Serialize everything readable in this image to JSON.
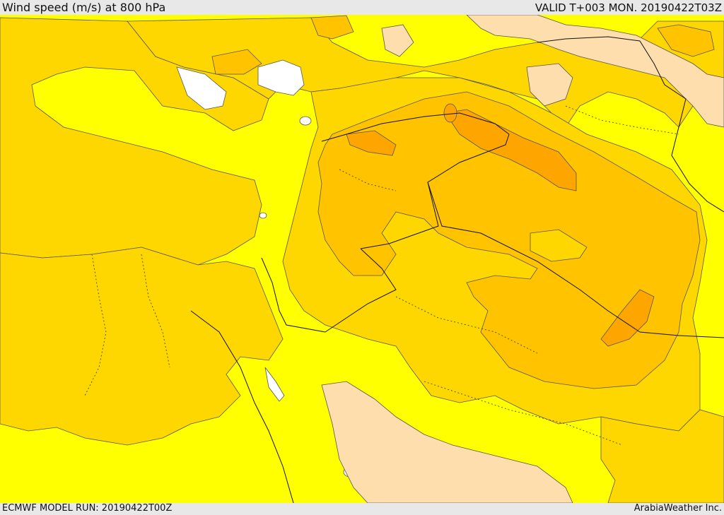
{
  "header": {
    "title": "Wind speed (m/s) at 800 hPa",
    "valid": "VALID T+003 MON. 20190422T03Z"
  },
  "footer": {
    "model_run": "ECMWF MODEL RUN: 20190422T00Z",
    "credit": "ArabiaWeather Inc."
  },
  "colors": {
    "calm": "#ffffff",
    "band_1": "#ffff00",
    "band_2": "#ffd700",
    "band_3": "#ffc300",
    "band_4": "#ffa500",
    "band_5": "#ff9600",
    "band_6": "#ff8c00",
    "highlight_land": "#ffdead",
    "contour_line": "#555555",
    "border_line": "#111111"
  }
}
